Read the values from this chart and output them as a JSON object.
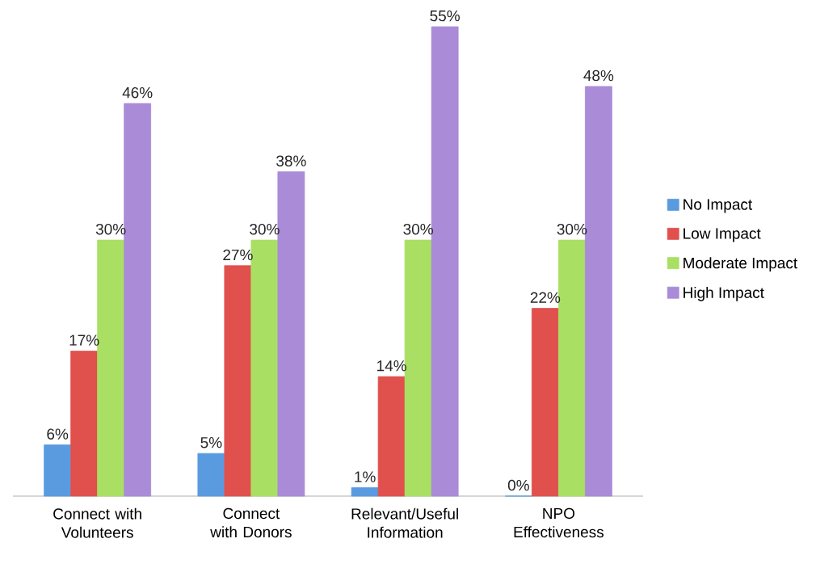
{
  "chart_data": {
    "type": "bar",
    "categories": [
      "Connect with Volunteers",
      "Connect with Donors",
      "Relevant/Useful Information",
      "NPO Effectiveness"
    ],
    "series": [
      {
        "name": "No Impact",
        "color": "#5a9be0",
        "values": [
          6,
          5,
          1,
          0
        ],
        "value_labels": [
          "6%",
          "5%",
          "1%",
          "0%"
        ]
      },
      {
        "name": "Low Impact",
        "color": "#e0504d",
        "values": [
          17,
          27,
          14,
          22
        ],
        "value_labels": [
          "17%",
          "27%",
          "14%",
          "22%"
        ]
      },
      {
        "name": "Moderate Impact",
        "color": "#a9e063",
        "values": [
          30,
          30,
          30,
          30
        ],
        "value_labels": [
          "30%",
          "30%",
          "30%",
          "30%"
        ]
      },
      {
        "name": "High Impact",
        "color": "#a98bd8",
        "values": [
          46,
          38,
          55,
          48
        ],
        "value_labels": [
          "46%",
          "38%",
          "55%",
          "48%"
        ]
      }
    ],
    "legend": "right"
  }
}
